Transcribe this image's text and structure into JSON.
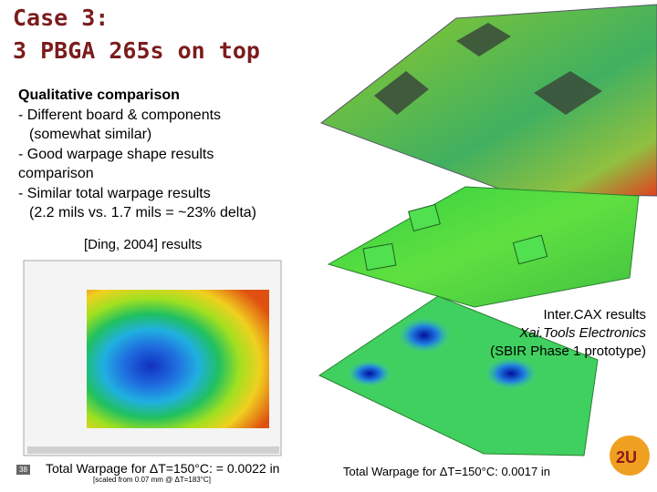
{
  "title": {
    "line1": "Case 3:",
    "line2": "3 PBGA 265s on top"
  },
  "notes": {
    "heading": "Qualitative comparison",
    "lines": [
      "- Different board & components",
      "(somewhat similar)",
      "- Good warpage shape results",
      "comparison",
      "- Similar total warpage results",
      "(2.2 mils vs. 1.7 mils = ~23% delta)"
    ]
  },
  "left_figure": {
    "caption": "[Ding, 2004] results",
    "result": "Total Warpage for ΔT=150°C: = 0.0022 in",
    "scaling": "[scaled from 0.07 mm @ ΔT=183°C]"
  },
  "right_figure": {
    "captions": [
      "Inter.CAX results",
      "Xai.Tools Electronics",
      "(SBIR Phase 1 prototype)"
    ],
    "result": "Total Warpage for ΔT=150°C: 0.0017 in"
  },
  "footer": {
    "slide_number": "38"
  }
}
